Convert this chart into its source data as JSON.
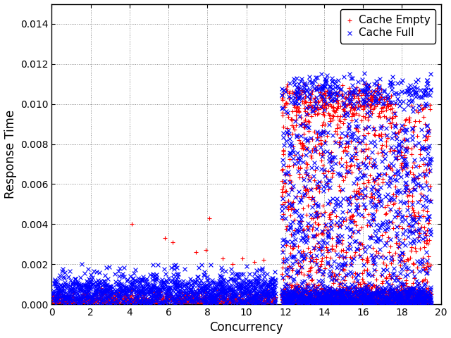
{
  "xlabel": "Concurrency",
  "ylabel": "Response Time",
  "xlim": [
    0,
    20
  ],
  "ylim": [
    0,
    0.015
  ],
  "yticks": [
    0,
    0.002,
    0.004,
    0.006,
    0.008,
    0.01,
    0.012,
    0.014
  ],
  "xticks": [
    0,
    2,
    4,
    6,
    8,
    10,
    12,
    14,
    16,
    18,
    20
  ],
  "legend_labels": [
    "Cache Empty",
    "Cache Full"
  ],
  "legend_colors": [
    "red",
    "blue"
  ],
  "grid_style": "dotted",
  "grid_color": "#888888",
  "background_color": "#ffffff",
  "seed": 12345
}
